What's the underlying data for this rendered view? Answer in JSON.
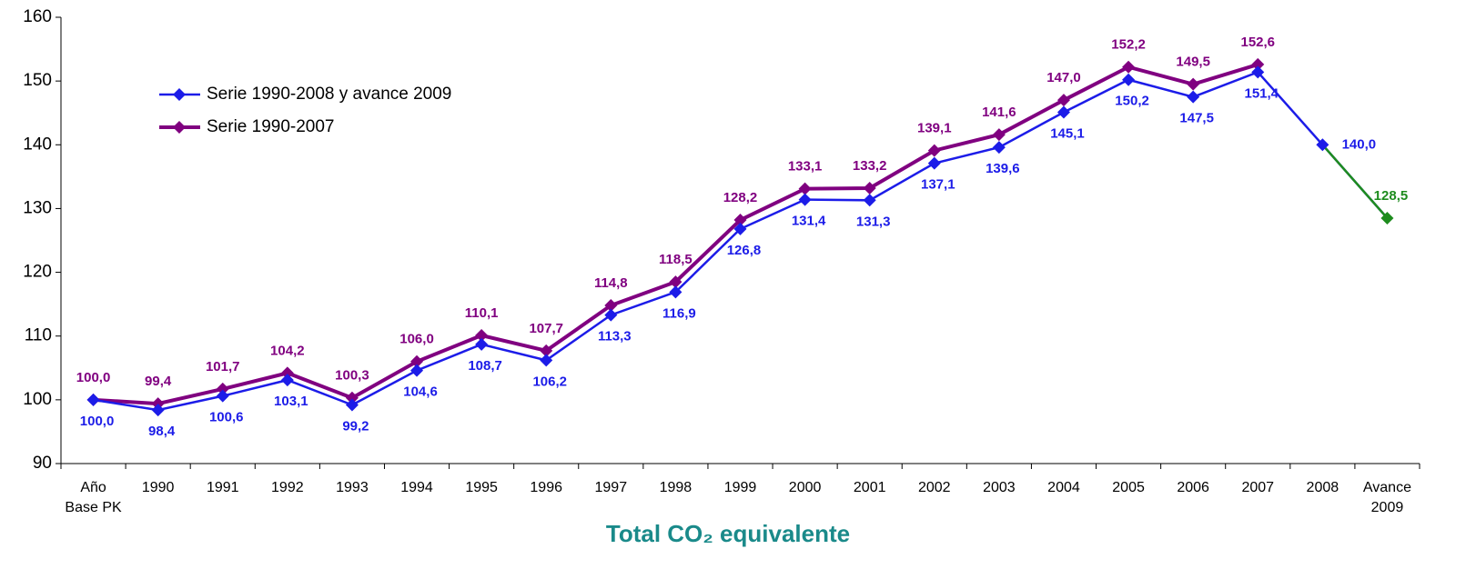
{
  "chart_data": {
    "type": "line",
    "title": "Total CO₂ equivalente",
    "categories": [
      "Año Base PK",
      "1990",
      "1991",
      "1992",
      "1993",
      "1994",
      "1995",
      "1996",
      "1997",
      "1998",
      "1999",
      "2000",
      "2001",
      "2002",
      "2003",
      "2004",
      "2005",
      "2006",
      "2007",
      "2008",
      "Avance 2009"
    ],
    "series": [
      {
        "name": "Serie 1990-2008 y avance 2009",
        "color": "#1c1ce8",
        "last_color": "#1e8c1e",
        "values": [
          100.0,
          98.4,
          100.6,
          103.1,
          99.2,
          104.6,
          108.7,
          106.2,
          113.3,
          116.9,
          126.8,
          131.4,
          131.3,
          137.1,
          139.6,
          145.1,
          150.2,
          147.5,
          151.4,
          140.0,
          128.5
        ],
        "value_labels": [
          "100,0",
          "98,4",
          "100,6",
          "103,1",
          "99,2",
          "104,6",
          "108,7",
          "106,2",
          "113,3",
          "116,9",
          "126,8",
          "131,4",
          "131,3",
          "137,1",
          "139,6",
          "145,1",
          "150,2",
          "147,5",
          "151,4",
          "140,0",
          "128,5"
        ]
      },
      {
        "name": "Serie 1990-2007",
        "color": "#800080",
        "values": [
          100.0,
          99.4,
          101.7,
          104.2,
          100.3,
          106.0,
          110.1,
          107.7,
          114.8,
          118.5,
          128.2,
          133.1,
          133.2,
          139.1,
          141.6,
          147.0,
          152.2,
          149.5,
          152.6,
          null,
          null
        ],
        "value_labels": [
          "100,0",
          "99,4",
          "101,7",
          "104,2",
          "100,3",
          "106,0",
          "110,1",
          "107,7",
          "114,8",
          "118,5",
          "128,2",
          "133,1",
          "133,2",
          "139,1",
          "141,6",
          "147,0",
          "152,2",
          "149,5",
          "152,6",
          null,
          null
        ]
      }
    ],
    "ylim": [
      90,
      160
    ],
    "yticks": [
      90,
      100,
      110,
      120,
      130,
      140,
      150,
      160
    ],
    "grid": false,
    "legend": "top-left"
  }
}
